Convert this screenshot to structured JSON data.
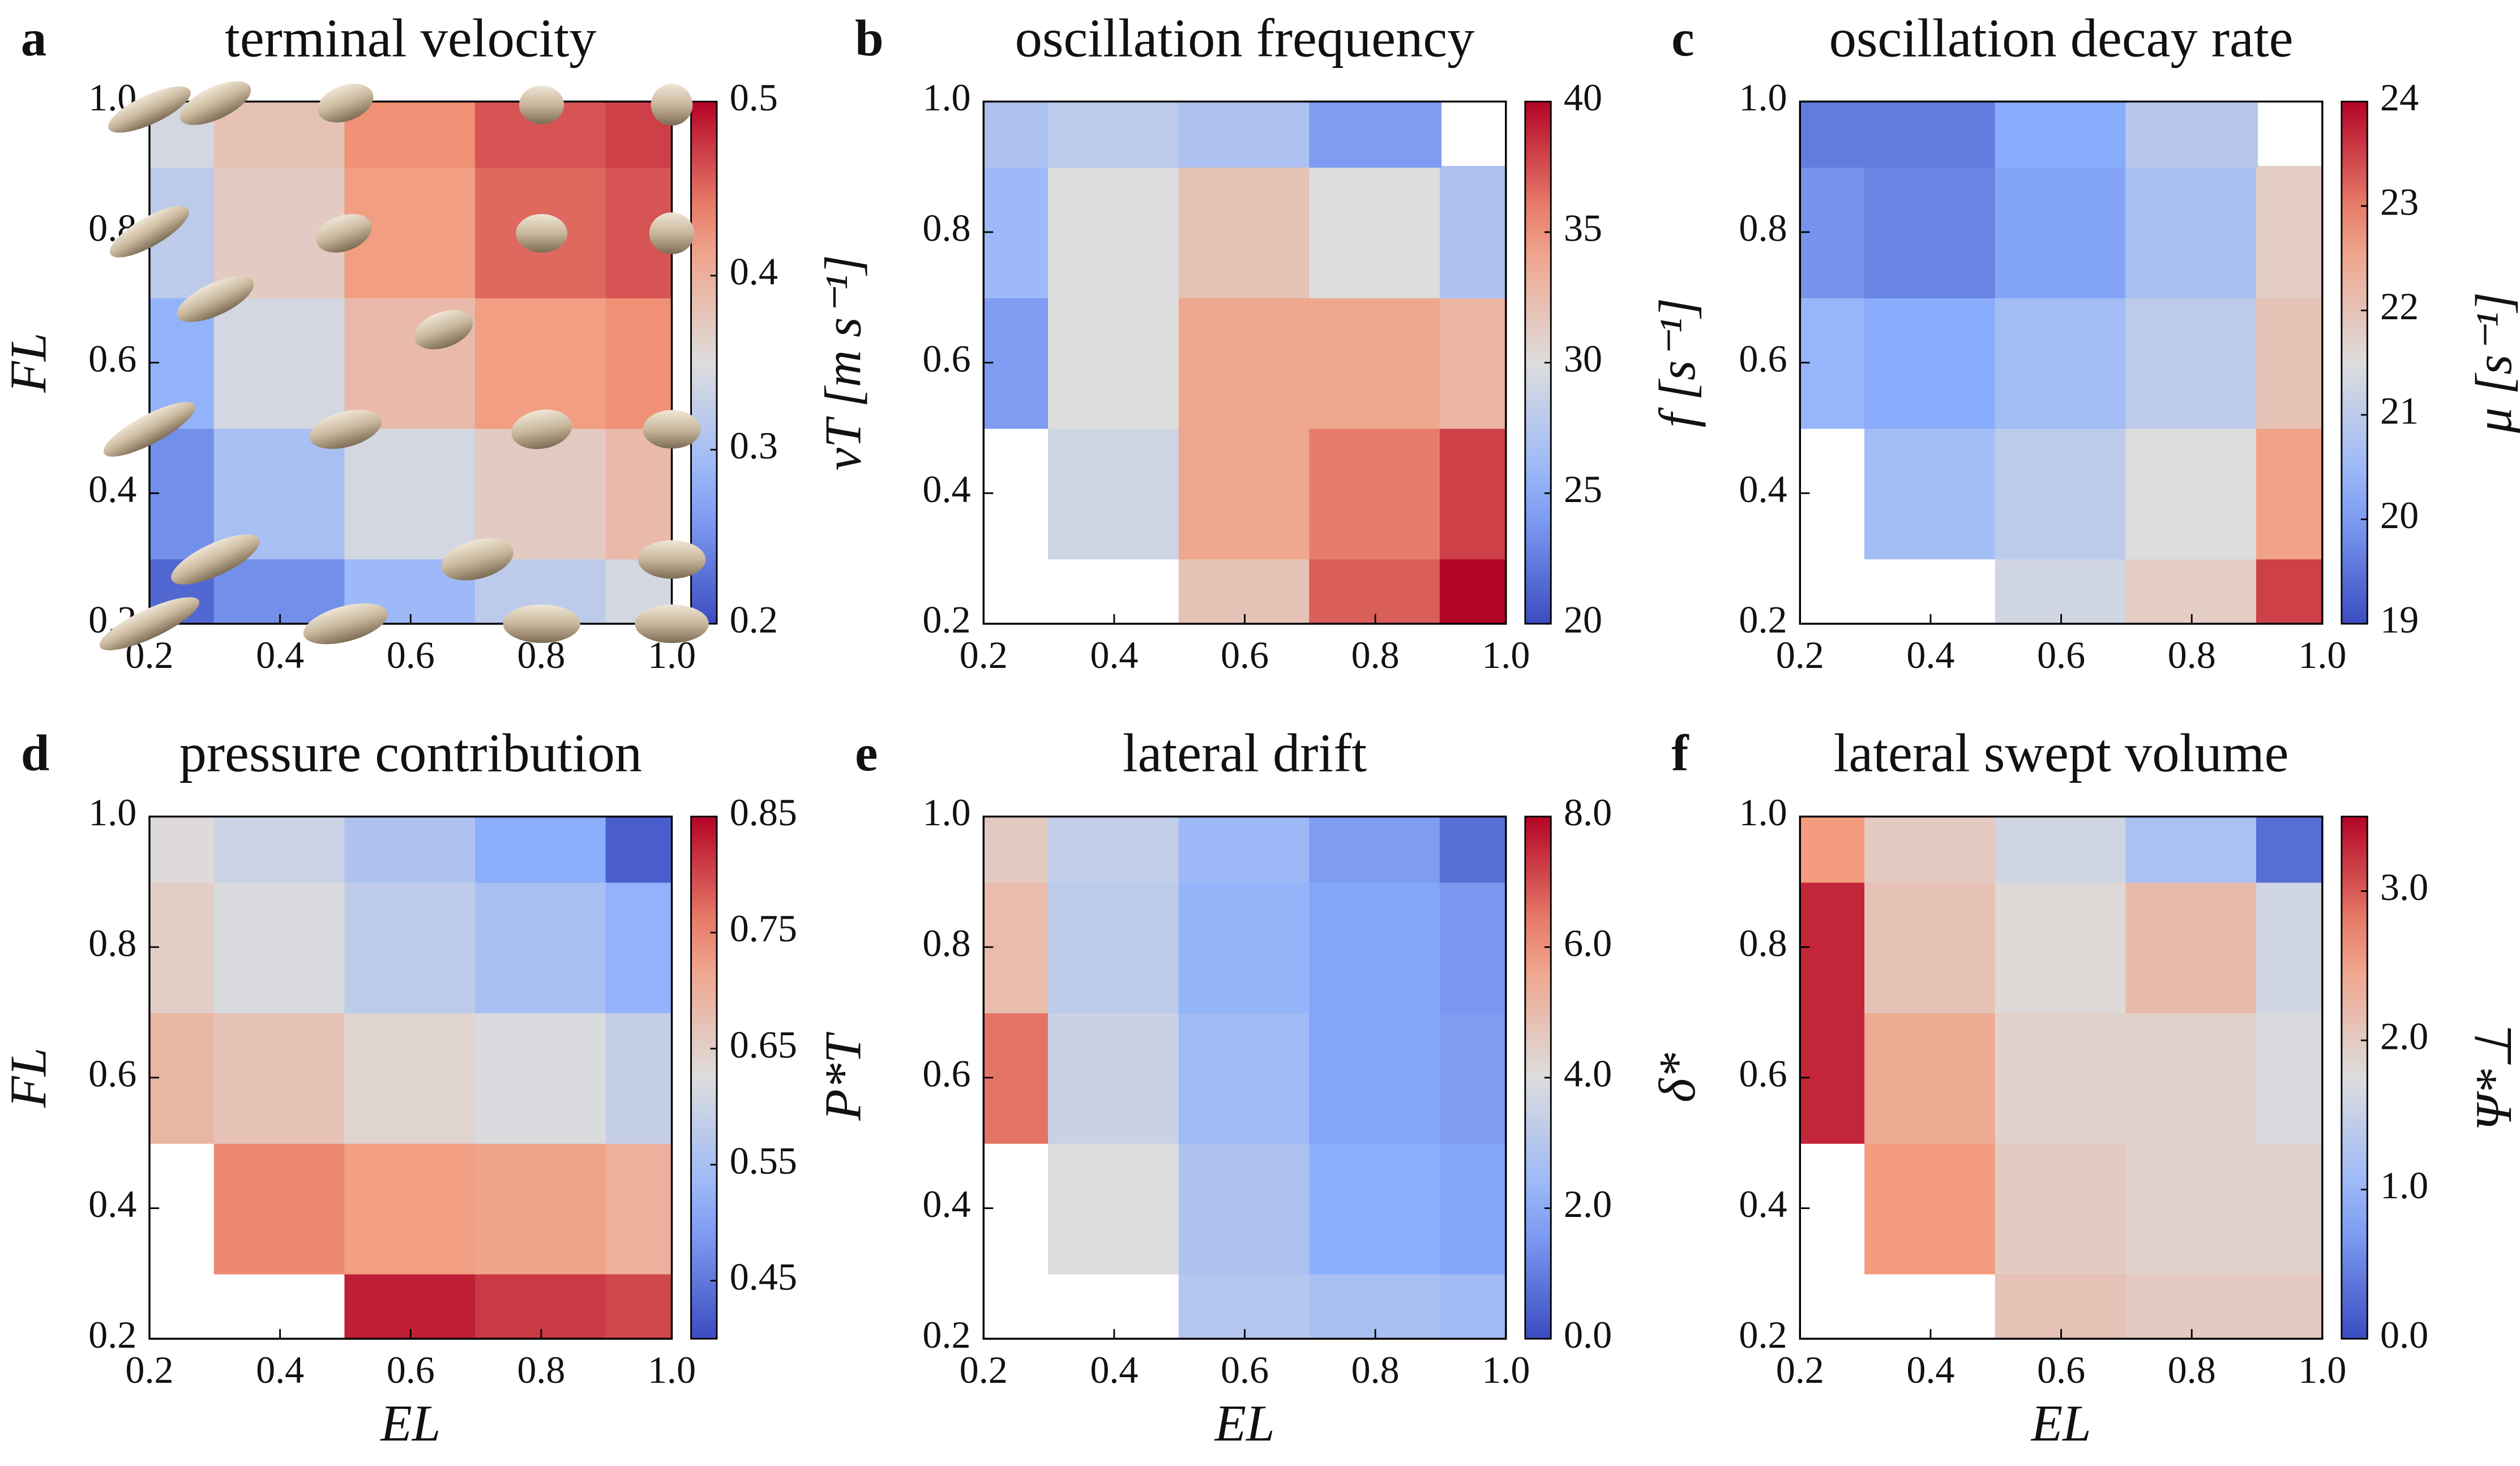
{
  "chart_data": [
    {
      "type": "contour",
      "panel_label": "a",
      "title": "terminal velocity",
      "ylabel": "FL",
      "colorbar_label": "vT [m s⁻¹]",
      "colormap": "coolwarm",
      "x": [
        0.2,
        0.4,
        0.6,
        0.8,
        1.0
      ],
      "y": [
        0.2,
        0.4,
        0.6,
        0.8,
        1.0
      ],
      "z": [
        [
          0.22,
          0.25,
          0.29,
          0.32,
          0.34
        ],
        [
          0.25,
          0.3,
          0.34,
          0.37,
          0.39
        ],
        [
          0.28,
          0.34,
          0.39,
          0.42,
          0.43
        ],
        [
          0.32,
          0.37,
          0.42,
          0.45,
          0.46
        ],
        [
          0.34,
          0.38,
          0.43,
          0.46,
          0.47
        ]
      ],
      "xlim": [
        0.2,
        1.0
      ],
      "ylim": [
        0.2,
        1.0
      ],
      "xticks": [
        0.2,
        0.4,
        0.6,
        0.8,
        {
          "value": 1.0,
          "label": "1.0"
        }
      ],
      "yticks": [
        0.2,
        0.4,
        0.6,
        0.8,
        {
          "value": 1.0,
          "label": "1.0"
        }
      ],
      "clim": [
        0.2,
        0.5
      ],
      "cticks": [
        0.2,
        0.3,
        0.4,
        0.5
      ]
    },
    {
      "type": "contour",
      "panel_label": "b",
      "title": "oscillation frequency",
      "colorbar_label": "f [s⁻¹]",
      "colormap": "coolwarm",
      "x": [
        0.2,
        0.4,
        0.6,
        0.8,
        1.0
      ],
      "y": [
        0.2,
        0.4,
        0.6,
        0.8,
        1.0
      ],
      "z": [
        [
          null,
          null,
          32,
          37,
          40
        ],
        [
          null,
          29,
          34,
          36,
          38
        ],
        [
          24,
          30,
          34,
          34,
          33
        ],
        [
          26,
          30,
          32,
          30,
          27
        ],
        [
          27,
          28,
          27,
          24,
          null
        ]
      ],
      "xlim": [
        0.2,
        1.0
      ],
      "ylim": [
        0.2,
        1.0
      ],
      "xticks": [
        0.2,
        0.4,
        0.6,
        0.8,
        {
          "value": 1.0,
          "label": "1.0"
        }
      ],
      "yticks": [
        0.2,
        0.4,
        0.6,
        0.8,
        {
          "value": 1.0,
          "label": "1.0"
        }
      ],
      "clim": [
        20,
        40
      ],
      "cticks": [
        20,
        25,
        30,
        35,
        40
      ]
    },
    {
      "type": "contour",
      "panel_label": "c",
      "title": "oscillation decay rate",
      "colorbar_label": "μ [s⁻¹]",
      "colormap": "coolwarm",
      "x": [
        0.2,
        0.4,
        0.6,
        0.8,
        1.0
      ],
      "y": [
        0.2,
        0.4,
        0.6,
        0.8,
        1.0
      ],
      "z": [
        [
          null,
          null,
          21.3,
          21.8,
          23.5
        ],
        [
          null,
          20.6,
          21.0,
          21.5,
          22.6
        ],
        [
          20.4,
          20.2,
          20.6,
          21.0,
          22.0
        ],
        [
          19.9,
          19.7,
          20.1,
          20.7,
          21.8
        ],
        [
          19.6,
          19.6,
          20.2,
          20.9,
          null
        ]
      ],
      "xlim": [
        0.2,
        1.0
      ],
      "ylim": [
        0.2,
        1.0
      ],
      "xticks": [
        0.2,
        0.4,
        0.6,
        0.8,
        {
          "value": 1.0,
          "label": "1.0"
        }
      ],
      "yticks": [
        0.2,
        0.4,
        0.6,
        0.8,
        {
          "value": 1.0,
          "label": "1.0"
        }
      ],
      "clim": [
        19,
        24
      ],
      "cticks": [
        19,
        20,
        21,
        22,
        23,
        24
      ]
    },
    {
      "type": "contour",
      "panel_label": "d",
      "title": "pressure contribution",
      "xlabel": "EL",
      "ylabel": "FL",
      "colorbar_label": "P*T",
      "colormap": "coolwarm",
      "x": [
        0.2,
        0.4,
        0.6,
        0.8,
        1.0
      ],
      "y": [
        0.2,
        0.4,
        0.6,
        0.8,
        1.0
      ],
      "z": [
        [
          null,
          null,
          0.83,
          0.81,
          0.8
        ],
        [
          null,
          0.75,
          0.73,
          0.72,
          0.7
        ],
        [
          0.69,
          0.67,
          0.64,
          0.62,
          0.59
        ],
        [
          0.65,
          0.62,
          0.58,
          0.55,
          0.52
        ],
        [
          0.63,
          0.6,
          0.56,
          0.51,
          0.42
        ]
      ],
      "xlim": [
        0.2,
        1.0
      ],
      "ylim": [
        0.2,
        1.0
      ],
      "xticks": [
        0.2,
        0.4,
        0.6,
        0.8,
        {
          "value": 1.0,
          "label": "1.0"
        }
      ],
      "yticks": [
        0.2,
        0.4,
        0.6,
        0.8,
        {
          "value": 1.0,
          "label": "1.0"
        }
      ],
      "clim": [
        0.4,
        0.85
      ],
      "cticks": [
        0.45,
        0.55,
        0.65,
        0.75,
        0.85
      ]
    },
    {
      "type": "contour",
      "panel_label": "e",
      "title": "lateral drift",
      "xlabel": "EL",
      "colorbar_label": "δ*",
      "colormap": "coolwarm",
      "x": [
        0.2,
        0.4,
        0.6,
        0.8,
        1.0
      ],
      "y": [
        0.2,
        0.4,
        0.6,
        0.8,
        1.0
      ],
      "z": [
        [
          null,
          null,
          3.0,
          2.7,
          2.5
        ],
        [
          null,
          4.0,
          2.8,
          2.0,
          1.8
        ],
        [
          6.5,
          3.5,
          2.5,
          1.8,
          1.6
        ],
        [
          5.0,
          3.2,
          2.2,
          1.8,
          1.5
        ],
        [
          4.6,
          3.3,
          2.4,
          1.6,
          0.7
        ]
      ],
      "xlim": [
        0.2,
        1.0
      ],
      "ylim": [
        0.2,
        1.0
      ],
      "xticks": [
        0.2,
        0.4,
        0.6,
        0.8,
        {
          "value": 1.0,
          "label": "1.0"
        }
      ],
      "yticks": [
        0.2,
        0.4,
        0.6,
        0.8,
        {
          "value": 1.0,
          "label": "1.0"
        }
      ],
      "clim": [
        0,
        8
      ],
      "cticks": [
        {
          "value": 0,
          "label": "0.0"
        },
        {
          "value": 2,
          "label": "2.0"
        },
        {
          "value": 4,
          "label": "4.0"
        },
        {
          "value": 6,
          "label": "6.0"
        },
        {
          "value": 8,
          "label": "8.0"
        }
      ]
    },
    {
      "type": "contour",
      "panel_label": "f",
      "title": "lateral swept volume",
      "xlabel": "EL",
      "colorbar_label": "Ψ*⊥",
      "colormap": "coolwarm",
      "x": [
        0.2,
        0.4,
        0.6,
        0.8,
        1.0
      ],
      "y": [
        0.2,
        0.4,
        0.6,
        0.8,
        1.0
      ],
      "z": [
        [
          null,
          null,
          2.1,
          2.0,
          2.0
        ],
        [
          null,
          2.6,
          2.0,
          1.9,
          1.9
        ],
        [
          3.3,
          2.4,
          1.9,
          1.9,
          1.7
        ],
        [
          3.3,
          2.1,
          1.8,
          2.2,
          1.6
        ],
        [
          2.6,
          2.0,
          1.6,
          1.2,
          0.3
        ]
      ],
      "xlim": [
        0.2,
        1.0
      ],
      "ylim": [
        0.2,
        1.0
      ],
      "xticks": [
        0.2,
        0.4,
        0.6,
        0.8,
        {
          "value": 1.0,
          "label": "1.0"
        }
      ],
      "yticks": [
        0.2,
        0.4,
        0.6,
        0.8,
        {
          "value": 1.0,
          "label": "1.0"
        }
      ],
      "clim": [
        0,
        3.5
      ],
      "cticks": [
        {
          "value": 0,
          "label": "0.0"
        },
        {
          "value": 1,
          "label": "1.0"
        },
        {
          "value": 2,
          "label": "2.0"
        },
        {
          "value": 3,
          "label": "3.0"
        }
      ]
    }
  ]
}
